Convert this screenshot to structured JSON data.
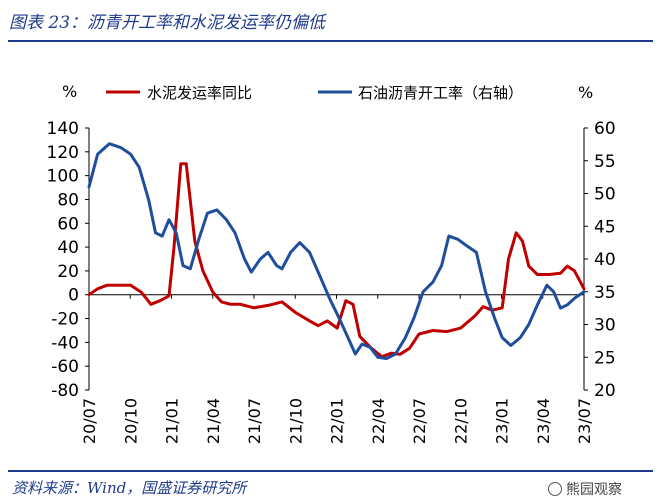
{
  "header": {
    "title": "图表 23：沥青开工率和水泥发运率仍偏低"
  },
  "footer": {
    "source": "资料来源：Wind，国盛证券研究所",
    "watermark": "熊园观察"
  },
  "chart_data": {
    "type": "line",
    "left_unit": "%",
    "right_unit": "%",
    "left_axis": {
      "min": -80,
      "max": 140,
      "ticks": [
        140,
        120,
        100,
        80,
        60,
        40,
        20,
        0,
        -20,
        -40,
        -60,
        -80
      ]
    },
    "right_axis": {
      "min": 20,
      "max": 60,
      "ticks": [
        60,
        55,
        50,
        45,
        40,
        35,
        30,
        25,
        20
      ]
    },
    "x_start": "2020-07",
    "x_end": "2023-07",
    "x_ticks": [
      "20/07",
      "20/10",
      "21/01",
      "21/04",
      "21/07",
      "21/10",
      "22/01",
      "22/04",
      "22/07",
      "22/10",
      "23/01",
      "23/04",
      "23/07"
    ],
    "series": [
      {
        "name": "水泥发运率同比",
        "color": "#c00000",
        "axis": "left",
        "points": [
          [
            "2020-07-01",
            0
          ],
          [
            "2020-07-20",
            5
          ],
          [
            "2020-08-10",
            8
          ],
          [
            "2020-09-10",
            8
          ],
          [
            "2020-10-01",
            8
          ],
          [
            "2020-10-25",
            2
          ],
          [
            "2020-11-15",
            -8
          ],
          [
            "2020-12-05",
            -5
          ],
          [
            "2020-12-25",
            -1
          ],
          [
            "2021-01-05",
            40
          ],
          [
            "2021-01-20",
            110
          ],
          [
            "2021-02-01",
            110
          ],
          [
            "2021-02-20",
            45
          ],
          [
            "2021-03-10",
            20
          ],
          [
            "2021-04-01",
            2
          ],
          [
            "2021-04-20",
            -6
          ],
          [
            "2021-05-10",
            -8
          ],
          [
            "2021-06-01",
            -8
          ],
          [
            "2021-07-01",
            -11
          ],
          [
            "2021-08-01",
            -9
          ],
          [
            "2021-09-01",
            -6
          ],
          [
            "2021-10-01",
            -15
          ],
          [
            "2021-11-01",
            -22
          ],
          [
            "2021-11-20",
            -26
          ],
          [
            "2021-12-10",
            -22
          ],
          [
            "2022-01-01",
            -28
          ],
          [
            "2022-01-20",
            -5
          ],
          [
            "2022-02-05",
            -8
          ],
          [
            "2022-02-20",
            -35
          ],
          [
            "2022-03-15",
            -44
          ],
          [
            "2022-04-10",
            -52
          ],
          [
            "2022-05-01",
            -49
          ],
          [
            "2022-05-20",
            -50
          ],
          [
            "2022-06-10",
            -45
          ],
          [
            "2022-07-01",
            -33
          ],
          [
            "2022-08-01",
            -30
          ],
          [
            "2022-09-01",
            -31
          ],
          [
            "2022-10-01",
            -28
          ],
          [
            "2022-11-01",
            -18
          ],
          [
            "2022-11-20",
            -10
          ],
          [
            "2022-12-10",
            -13
          ],
          [
            "2023-01-01",
            -11
          ],
          [
            "2023-01-15",
            30
          ],
          [
            "2023-02-01",
            52
          ],
          [
            "2023-02-15",
            45
          ],
          [
            "2023-03-01",
            24
          ],
          [
            "2023-03-20",
            17
          ],
          [
            "2023-04-15",
            17
          ],
          [
            "2023-05-10",
            18
          ],
          [
            "2023-05-25",
            24
          ],
          [
            "2023-06-10",
            20
          ],
          [
            "2023-07-01",
            5
          ]
        ]
      },
      {
        "name": "石油沥青开工率（右轴）",
        "color": "#1f4e9c",
        "axis": "right",
        "points": [
          [
            "2020-07-01",
            51
          ],
          [
            "2020-07-20",
            56
          ],
          [
            "2020-08-15",
            57.6
          ],
          [
            "2020-09-10",
            57
          ],
          [
            "2020-10-01",
            56
          ],
          [
            "2020-10-20",
            54
          ],
          [
            "2020-11-10",
            49
          ],
          [
            "2020-11-25",
            44
          ],
          [
            "2020-12-10",
            43.5
          ],
          [
            "2020-12-25",
            46
          ],
          [
            "2021-01-10",
            44
          ],
          [
            "2021-01-25",
            39
          ],
          [
            "2021-02-10",
            38.5
          ],
          [
            "2021-03-01",
            43
          ],
          [
            "2021-03-20",
            47
          ],
          [
            "2021-04-10",
            47.5
          ],
          [
            "2021-05-01",
            46
          ],
          [
            "2021-05-20",
            44
          ],
          [
            "2021-06-10",
            40
          ],
          [
            "2021-06-25",
            38
          ],
          [
            "2021-07-15",
            40
          ],
          [
            "2021-08-01",
            41
          ],
          [
            "2021-08-20",
            39
          ],
          [
            "2021-09-01",
            38.5
          ],
          [
            "2021-09-20",
            41
          ],
          [
            "2021-10-10",
            42.5
          ],
          [
            "2021-11-01",
            41
          ],
          [
            "2021-11-20",
            38
          ],
          [
            "2021-12-15",
            34
          ],
          [
            "2022-01-05",
            31
          ],
          [
            "2022-01-25",
            28
          ],
          [
            "2022-02-10",
            25.5
          ],
          [
            "2022-02-25",
            27
          ],
          [
            "2022-03-15",
            26.5
          ],
          [
            "2022-04-01",
            25
          ],
          [
            "2022-04-20",
            24.8
          ],
          [
            "2022-05-10",
            25.5
          ],
          [
            "2022-06-01",
            28
          ],
          [
            "2022-06-20",
            31
          ],
          [
            "2022-07-10",
            35
          ],
          [
            "2022-08-01",
            36.5
          ],
          [
            "2022-08-20",
            39
          ],
          [
            "2022-09-05",
            43.5
          ],
          [
            "2022-09-25",
            43
          ],
          [
            "2022-10-15",
            42
          ],
          [
            "2022-11-05",
            41
          ],
          [
            "2022-11-25",
            35
          ],
          [
            "2022-12-15",
            31
          ],
          [
            "2023-01-01",
            28
          ],
          [
            "2023-01-20",
            26.8
          ],
          [
            "2023-02-10",
            28
          ],
          [
            "2023-03-01",
            30
          ],
          [
            "2023-03-20",
            33
          ],
          [
            "2023-04-10",
            36
          ],
          [
            "2023-04-25",
            35
          ],
          [
            "2023-05-10",
            32.5
          ],
          [
            "2023-05-25",
            33
          ],
          [
            "2023-06-10",
            34
          ],
          [
            "2023-07-01",
            35
          ]
        ]
      }
    ]
  }
}
